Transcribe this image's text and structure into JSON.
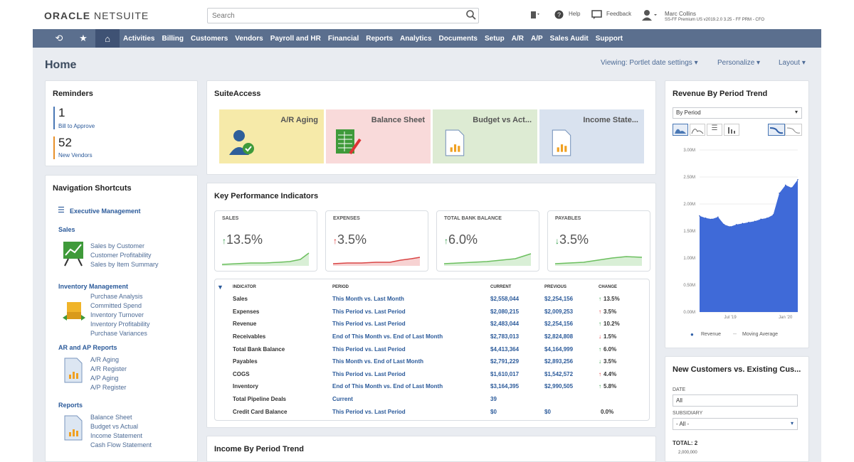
{
  "topbar": {
    "logo_a": "ORACLE",
    "logo_b": " NETSUITE",
    "search_placeholder": "Search",
    "help": "Help",
    "feedback": "Feedback",
    "user_name": "Marc Collins",
    "user_role": "SS-FF Premium US v2019.2.0 3.25 - FF PRM - CFO"
  },
  "nav": {
    "tabs": [
      "Activities",
      "Billing",
      "Customers",
      "Vendors",
      "Payroll and HR",
      "Financial",
      "Reports",
      "Analytics",
      "Documents",
      "Setup",
      "A/R",
      "A/P",
      "Sales Audit",
      "Support"
    ]
  },
  "page": {
    "title": "Home",
    "viewing": "Viewing: Portlet date settings",
    "personalize": "Personalize",
    "layout": "Layout"
  },
  "reminders": {
    "title": "Reminders",
    "items": [
      {
        "count": "1",
        "label": "Bill to Approve",
        "color": "#4a78b5"
      },
      {
        "count": "52",
        "label": "New Vendors",
        "color": "#e8902a"
      }
    ]
  },
  "shortcuts": {
    "title": "Navigation Shortcuts",
    "exec": "Executive Management",
    "sales_head": "Sales",
    "sales_links": [
      "Sales by Customer",
      "Customer Profitability",
      "Sales by Item Summary"
    ],
    "inv_head": "Inventory Management",
    "inv_links": [
      "Purchase Analysis",
      "Committed Spend",
      "Inventory Turnover",
      "Inventory Profitability",
      "Purchase Variances"
    ],
    "arap_head": "AR and AP Reports",
    "arap_links": [
      "A/R Aging",
      "A/R Register",
      "A/P Aging",
      "A/P Register"
    ],
    "reports_head": "Reports",
    "reports_links": [
      "Balance Sheet",
      "Budget vs Actual",
      "Income Statement",
      "Cash Flow Statement"
    ]
  },
  "suiteaccess": {
    "title": "SuiteAccess",
    "tiles": [
      {
        "label": "A/R Aging",
        "bg": "#f6eaa9"
      },
      {
        "label": "Balance Sheet",
        "bg": "#f9dada"
      },
      {
        "label": "Budget vs Act...",
        "bg": "#ddebd3"
      },
      {
        "label": "Income State...",
        "bg": "#d9e2ef"
      }
    ]
  },
  "kpi": {
    "title": "Key Performance Indicators",
    "boxes": [
      {
        "title": "SALES",
        "value": "13.5%",
        "arrow": "↑",
        "dir": "up"
      },
      {
        "title": "EXPENSES",
        "value": "3.5%",
        "arrow": "↑",
        "dir": "down"
      },
      {
        "title": "TOTAL BANK BALANCE",
        "value": "6.0%",
        "arrow": "↑",
        "dir": "up"
      },
      {
        "title": "PAYABLES",
        "value": "3.5%",
        "arrow": "↓",
        "dir": "up"
      }
    ],
    "headers": [
      "INDICATOR",
      "PERIOD",
      "CURRENT",
      "PREVIOUS",
      "CHANGE"
    ],
    "rows": [
      {
        "indicator": "Sales",
        "period": "This Month vs. Last Month",
        "current": "$2,558,044",
        "previous": "$2,254,156",
        "change": "13.5%",
        "arrow": "↑",
        "dir": "up"
      },
      {
        "indicator": "Expenses",
        "period": "This Period vs. Last Period",
        "current": "$2,080,215",
        "previous": "$2,009,253",
        "change": "3.5%",
        "arrow": "↑",
        "dir": "down"
      },
      {
        "indicator": "Revenue",
        "period": "This Period vs. Last Period",
        "current": "$2,483,044",
        "previous": "$2,254,156",
        "change": "10.2%",
        "arrow": "↑",
        "dir": "up"
      },
      {
        "indicator": "Receivables",
        "period": "End of This Month vs. End of Last Month",
        "current": "$2,783,013",
        "previous": "$2,824,808",
        "change": "1.5%",
        "arrow": "↓",
        "dir": "down"
      },
      {
        "indicator": "Total Bank Balance",
        "period": "This Period vs. Last Period",
        "current": "$4,413,364",
        "previous": "$4,164,999",
        "change": "6.0%",
        "arrow": "↑",
        "dir": "up"
      },
      {
        "indicator": "Payables",
        "period": "This Month vs. End of Last Month",
        "current": "$2,791,229",
        "previous": "$2,893,256",
        "change": "3.5%",
        "arrow": "↓",
        "dir": "up"
      },
      {
        "indicator": "COGS",
        "period": "This Period vs. Last Period",
        "current": "$1,610,017",
        "previous": "$1,542,572",
        "change": "4.4%",
        "arrow": "↑",
        "dir": "down"
      },
      {
        "indicator": "Inventory",
        "period": "End of This Month vs. End of Last Month",
        "current": "$3,164,395",
        "previous": "$2,990,505",
        "change": "5.8%",
        "arrow": "↑",
        "dir": "up"
      },
      {
        "indicator": "Total Pipeline Deals",
        "period": "Current",
        "current": "39",
        "previous": "",
        "change": "",
        "arrow": "",
        "dir": ""
      },
      {
        "indicator": "Credit Card Balance",
        "period": "This Period vs. Last Period",
        "current": "$0",
        "previous": "$0",
        "change": "0.0%",
        "arrow": "",
        "dir": ""
      }
    ]
  },
  "income": {
    "title": "Income By Period Trend"
  },
  "revenue": {
    "title": "Revenue By Period Trend",
    "select": "By Period",
    "legend_a": "Revenue",
    "legend_b": "Moving Average"
  },
  "chart_data": {
    "type": "area",
    "title": "Revenue By Period Trend",
    "x_ticks": [
      "Jul '19",
      "Jan '20"
    ],
    "y_ticks": [
      "0.00M",
      "0.50M",
      "1.00M",
      "1.50M",
      "2.00M",
      "2.50M",
      "3.00M"
    ],
    "ylim": [
      0,
      3.0
    ],
    "series": [
      {
        "name": "Revenue",
        "color": "#3f6ad8",
        "values": [
          1.78,
          1.74,
          1.72,
          1.76,
          1.62,
          1.58,
          1.62,
          1.64,
          1.66,
          1.68,
          1.72,
          1.74,
          1.8,
          2.2,
          2.35,
          2.3,
          2.45
        ]
      }
    ],
    "legend_position": "bottom"
  },
  "newcust": {
    "title": "New Customers vs. Existing Cus...",
    "date_label": "DATE",
    "date_value": "All",
    "sub_label": "SUBSIDIARY",
    "sub_value": "- All -",
    "total": "TOTAL: 2",
    "first_tick": "2,000,000"
  }
}
